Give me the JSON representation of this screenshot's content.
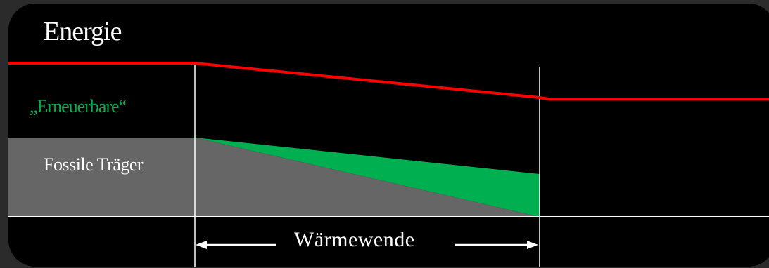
{
  "title": "Energie",
  "labels": {
    "renewables": "„Erneuerbare“",
    "fossil": "Fossile Träger",
    "transition": "Wärmewende"
  },
  "colors": {
    "background": "#000000",
    "frame": "#2b2b2b",
    "total_line": "#ff0000",
    "renewables": "#00b050",
    "fossil": "#666666",
    "guides": "#ffffff"
  }
}
